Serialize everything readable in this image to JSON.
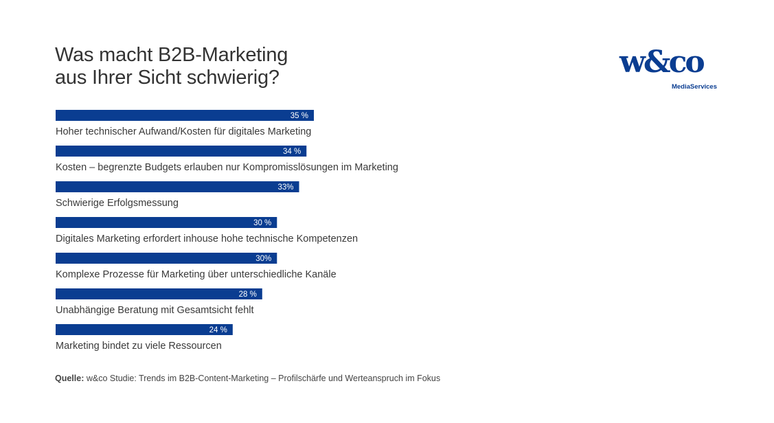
{
  "title": {
    "line1": "Was macht B2B-Marketing",
    "line2": "aus Ihrer Sicht schwierig?"
  },
  "logo": {
    "main": "w&co",
    "sub": "MediaServices"
  },
  "source": {
    "label": "Quelle:",
    "text": "w&co Studie: Trends im B2B-Content-Marketing – Profilschärfe und Werteanspruch im Fokus"
  },
  "colors": {
    "bar": "#0a3d91",
    "bar_label": "#ffffff",
    "category_text": "#3a3a3a"
  },
  "chart_data": {
    "type": "bar",
    "orientation": "horizontal",
    "categories": [
      "Hoher technischer Aufwand/Kosten für digitales Marketing",
      "Kosten – begrenzte Budgets erlauben nur Kompromisslösungen im Marketing",
      "Schwierige Erfolgsmessung",
      "Digitales Marketing erfordert inhouse hohe technische Kompetenzen",
      "Komplexe Prozesse für Marketing über unterschiedliche Kanäle",
      "Unabhängige Beratung mit Gesamtsicht fehlt",
      "Marketing bindet zu viele Ressourcen"
    ],
    "values": [
      35,
      34,
      33,
      30,
      30,
      28,
      24
    ],
    "value_labels": [
      "35 %",
      "34 %",
      "33%",
      "30 %",
      "30%",
      "28 %",
      "24 %"
    ],
    "unit": "%",
    "xlim": [
      0,
      35
    ],
    "grid": false,
    "legend": "none"
  }
}
